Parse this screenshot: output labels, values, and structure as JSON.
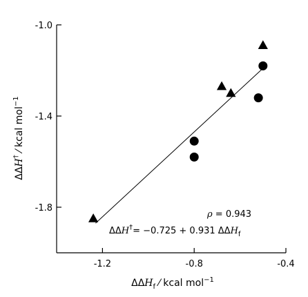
{
  "chart_data": {
    "type": "scatter",
    "x_axis": {
      "range": [
        -1.4,
        -0.4
      ],
      "ticks": [
        -1.2,
        -0.8,
        -0.4
      ],
      "tick_labels": [
        "-1.2",
        "-0.8",
        "-0.4"
      ],
      "label_prefix": "ΔΔ",
      "label_symbol": "H",
      "label_sub": "f",
      "label_unit": " ⁄ kcal mol",
      "label_sup": "−1"
    },
    "y_axis": {
      "range": [
        -2.0,
        -1.0
      ],
      "ticks": [
        -1.0,
        -1.4,
        -1.8
      ],
      "tick_labels": [
        "-1.0",
        "-1.4",
        "-1.8"
      ],
      "label_prefix": "ΔΔ",
      "label_symbol": "H",
      "label_dagger": "†",
      "label_unit": " ⁄ kcal mol",
      "label_sup": "−1"
    },
    "series": [
      {
        "marker": "triangle",
        "points": [
          [
            -1.24,
            -1.85
          ],
          [
            -0.68,
            -1.27
          ],
          [
            -0.64,
            -1.3
          ],
          [
            -0.5,
            -1.09
          ]
        ]
      },
      {
        "marker": "circle",
        "points": [
          [
            -0.8,
            -1.51
          ],
          [
            -0.8,
            -1.58
          ],
          [
            -0.52,
            -1.32
          ],
          [
            -0.5,
            -1.18
          ]
        ]
      }
    ],
    "fit_line": {
      "slope": 0.931,
      "intercept": -0.725,
      "x_range": [
        -1.23,
        -0.5
      ]
    },
    "annotations": {
      "rho": {
        "symbol": "ρ",
        "text": " = 0.943"
      },
      "equation": {
        "prefix": "ΔΔ",
        "symbol": "H",
        "dagger": "†",
        "text": "= −0.725 + 0.931 ΔΔ",
        "symbol2": "H",
        "sub": "f"
      }
    },
    "grid": false,
    "legend": "none"
  }
}
